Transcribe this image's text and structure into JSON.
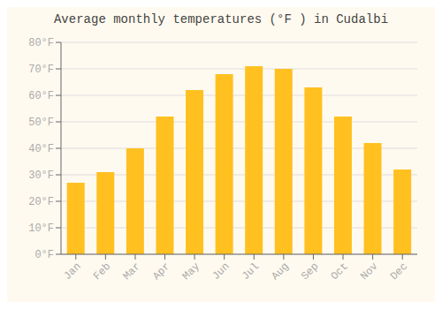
{
  "chart_data": {
    "type": "bar",
    "title": "Average monthly temperatures (°F ) in Cudalbi",
    "categories": [
      "Jan",
      "Feb",
      "Mar",
      "Apr",
      "May",
      "Jun",
      "Jul",
      "Aug",
      "Sep",
      "Oct",
      "Nov",
      "Dec"
    ],
    "values": [
      27,
      31,
      40,
      52,
      62,
      68,
      71,
      70,
      63,
      52,
      42,
      32
    ],
    "color": "#FFC020",
    "ylim": [
      0,
      80
    ],
    "yticks": [
      {
        "value": 0,
        "label": "0°F"
      },
      {
        "value": 10,
        "label": "10°F"
      },
      {
        "value": 20,
        "label": "20°F"
      },
      {
        "value": 30,
        "label": "30°F"
      },
      {
        "value": 40,
        "label": "40°F"
      },
      {
        "value": 50,
        "label": "50°F"
      },
      {
        "value": 60,
        "label": "60°F"
      },
      {
        "value": 70,
        "label": "70°F"
      },
      {
        "value": 80,
        "label": "80°F"
      }
    ],
    "grid": true
  }
}
